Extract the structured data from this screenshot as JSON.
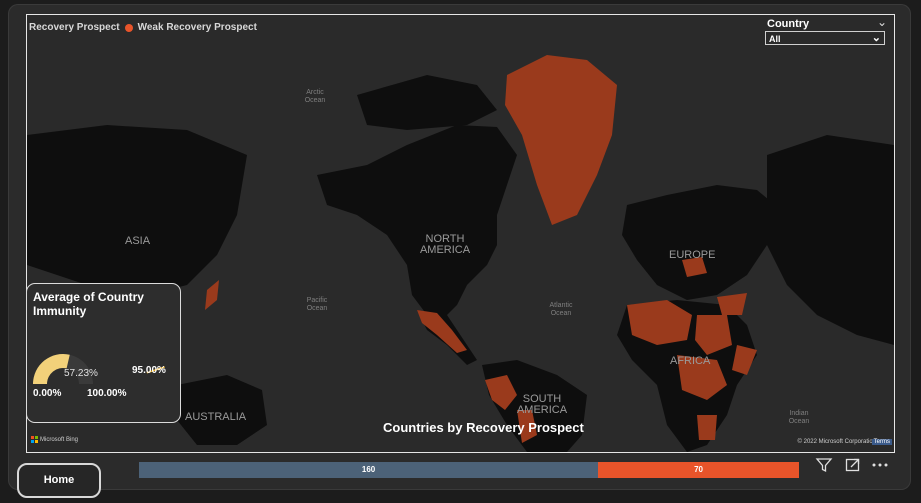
{
  "map_visual": {
    "title": "Countries by Recovery Prospect",
    "legend": {
      "label": "Recovery Prospect",
      "items": [
        {
          "label": "Weak Recovery Prospect",
          "color": "#e8542a"
        }
      ]
    },
    "region_labels": [
      "ASIA",
      "NORTH AMERICA",
      "EUROPE",
      "AFRICA",
      "SOUTH AMERICA",
      "AUSTRALIA"
    ],
    "ocean_labels": [
      "Arctic Ocean",
      "Pacific Ocean",
      "Atlantic Ocean",
      "Indian Ocean"
    ],
    "attribution": "Microsoft Bing",
    "copyright": "© 2022 Microsoft Corporation",
    "terms": "Terms",
    "highlight_color": "#9a3a1c"
  },
  "slicer": {
    "title": "Country",
    "selected": "All"
  },
  "kpi_card": {
    "title": "Average of Country Immunity",
    "value": "57.23%",
    "value_fraction": 0.5723,
    "target": "95.00%",
    "target_fraction": 0.95,
    "min": "0.00%",
    "max": "100.00%",
    "gauge_color": "#f2d17a",
    "target_color": "#f0b429"
  },
  "navigation": {
    "home_label": "Home"
  },
  "chart_data": {
    "type": "bar",
    "series": [
      {
        "value": 160,
        "color": "#4c6278"
      },
      {
        "value": 70,
        "color": "#e8542a"
      }
    ]
  },
  "toolbar": {
    "icons": [
      "filter-icon",
      "focus-mode-icon",
      "more-options-icon"
    ]
  }
}
